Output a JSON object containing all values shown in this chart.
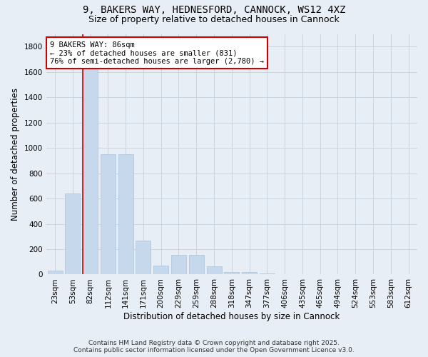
{
  "title1": "9, BAKERS WAY, HEDNESFORD, CANNOCK, WS12 4XZ",
  "title2": "Size of property relative to detached houses in Cannock",
  "xlabel": "Distribution of detached houses by size in Cannock",
  "ylabel": "Number of detached properties",
  "categories": [
    "23sqm",
    "53sqm",
    "82sqm",
    "112sqm",
    "141sqm",
    "171sqm",
    "200sqm",
    "229sqm",
    "259sqm",
    "288sqm",
    "318sqm",
    "347sqm",
    "377sqm",
    "406sqm",
    "435sqm",
    "465sqm",
    "494sqm",
    "524sqm",
    "553sqm",
    "583sqm",
    "612sqm"
  ],
  "values": [
    30,
    640,
    1630,
    950,
    950,
    265,
    70,
    155,
    155,
    65,
    20,
    20,
    8,
    5,
    3,
    2,
    1,
    1,
    0,
    0,
    0
  ],
  "bar_color": "#c5d8ec",
  "bar_edge_color": "#a8c4de",
  "grid_color": "#c8d4e0",
  "background_color": "#e8eef5",
  "vline_color": "#cc0000",
  "vline_x_index": 2,
  "annotation_text": "9 BAKERS WAY: 86sqm\n← 23% of detached houses are smaller (831)\n76% of semi-detached houses are larger (2,780) →",
  "annotation_box_facecolor": "#ffffff",
  "annotation_box_edgecolor": "#cc0000",
  "ylim": [
    0,
    1900
  ],
  "yticks": [
    0,
    200,
    400,
    600,
    800,
    1000,
    1200,
    1400,
    1600,
    1800
  ],
  "footnote": "Contains HM Land Registry data © Crown copyright and database right 2025.\nContains public sector information licensed under the Open Government Licence v3.0.",
  "title_fontsize": 10,
  "subtitle_fontsize": 9,
  "axis_label_fontsize": 8.5,
  "tick_fontsize": 7.5,
  "annotation_fontsize": 7.5,
  "footnote_fontsize": 6.5
}
